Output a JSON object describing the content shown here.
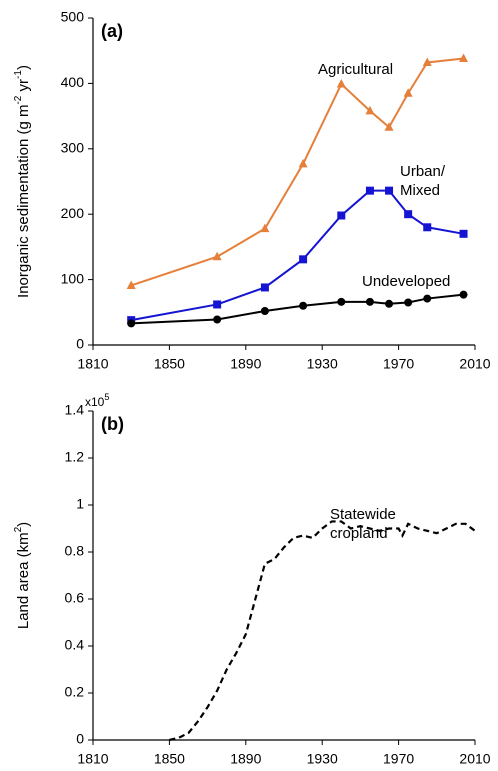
{
  "chart_data": [
    {
      "type": "line",
      "panel_label": "(a)",
      "ylabel": [
        "Inorganic sedimentation (g m",
        "-2",
        " yr",
        "-1",
        ")"
      ],
      "x": [
        1830,
        1875,
        1900,
        1920,
        1940,
        1955,
        1965,
        1975,
        1985,
        2004
      ],
      "series": [
        {
          "name": [
            "Agricultural"
          ],
          "color": "#e57f3a",
          "marker": "triangle",
          "values": [
            91,
            135,
            178,
            277,
            399,
            358,
            333,
            385,
            432,
            438
          ]
        },
        {
          "name": [
            "Urban/",
            "Mixed"
          ],
          "color": "#1414d2",
          "marker": "square",
          "values": [
            38,
            62,
            88,
            131,
            198,
            236,
            236,
            200,
            180,
            170
          ]
        },
        {
          "name": [
            "Undeveloped"
          ],
          "color": "#000000",
          "marker": "circle",
          "values": [
            33,
            39,
            52,
            60,
            66,
            66,
            63,
            65,
            71,
            77
          ]
        }
      ],
      "xlim": [
        1810,
        2010
      ],
      "xticks": [
        1810,
        1850,
        1890,
        1930,
        1970,
        2010
      ],
      "ylim": [
        0,
        500
      ],
      "yticks": [
        0,
        100,
        200,
        300,
        400,
        500
      ]
    },
    {
      "type": "line",
      "panel_label": "(b)",
      "ylabel": [
        "Land area (km",
        "2",
        ")"
      ],
      "multiplier": [
        "x10",
        "5"
      ],
      "x": [
        1850,
        1855,
        1860,
        1865,
        1870,
        1875,
        1880,
        1885,
        1890,
        1895,
        1900,
        1905,
        1910,
        1915,
        1920,
        1925,
        1930,
        1935,
        1940,
        1945,
        1950,
        1955,
        1960,
        1965,
        1970,
        1972,
        1975,
        1980,
        1985,
        1990,
        1995,
        2000,
        2005,
        2010
      ],
      "series": [
        {
          "name": [
            "Statewide",
            "cropland"
          ],
          "color": "#000000",
          "dashed": true,
          "values": [
            0,
            0.01,
            0.03,
            0.08,
            0.14,
            0.21,
            0.3,
            0.37,
            0.45,
            0.6,
            0.75,
            0.77,
            0.82,
            0.86,
            0.87,
            0.86,
            0.9,
            0.93,
            0.93,
            0.9,
            0.91,
            0.9,
            0.89,
            0.9,
            0.9,
            0.87,
            0.92,
            0.9,
            0.89,
            0.88,
            0.9,
            0.92,
            0.92,
            0.89
          ]
        }
      ],
      "xlim": [
        1810,
        2010
      ],
      "xticks": [
        1810,
        1850,
        1890,
        1930,
        1970,
        2010
      ],
      "ylim": [
        0,
        1.4
      ],
      "yticks": [
        0,
        0.2,
        0.4,
        0.6,
        0.8,
        1,
        1.2,
        1.4
      ]
    }
  ]
}
